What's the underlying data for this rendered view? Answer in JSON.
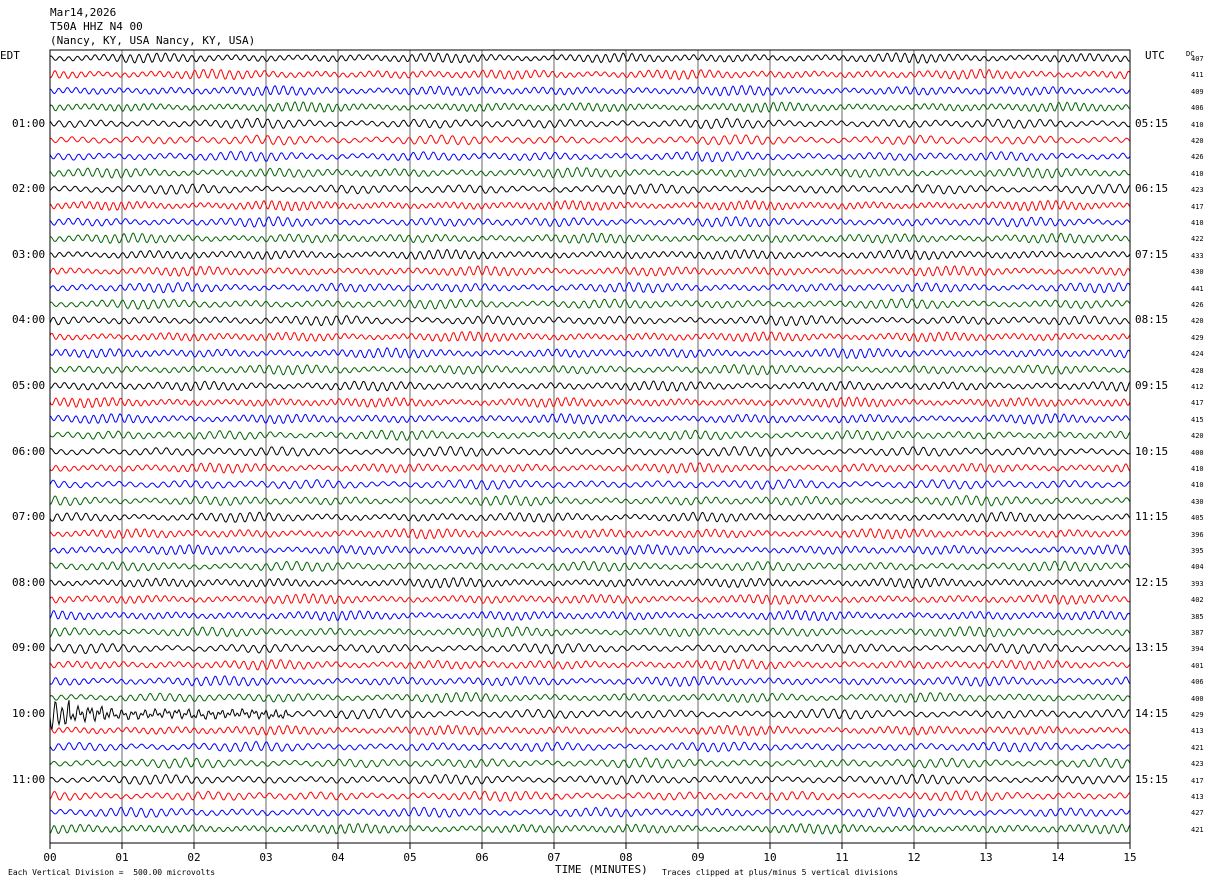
{
  "header": {
    "date": "Mar14,2026",
    "station": "T50A HHZ N4 00",
    "location": "(Nancy, KY, USA Nancy, KY, USA)"
  },
  "left_axis_label": "EDT",
  "right_axis_label": "UTC",
  "dc_label": "DC",
  "edt_hours": [
    "01:00",
    "02:00",
    "03:00",
    "04:00",
    "05:00",
    "06:00",
    "07:00",
    "08:00",
    "09:00",
    "10:00",
    "11:00"
  ],
  "utc_hours": [
    "05:15",
    "06:15",
    "07:15",
    "08:15",
    "09:15",
    "10:15",
    "11:15",
    "12:15",
    "13:15",
    "14:15",
    "15:15"
  ],
  "dc_offsets": [
    "407",
    "411",
    "409",
    "406",
    "410",
    "420",
    "426",
    "410",
    "423",
    "417",
    "410",
    "422",
    "433",
    "430",
    "441",
    "426",
    "420",
    "429",
    "424",
    "428",
    "412",
    "417",
    "415",
    "420",
    "400",
    "410",
    "410",
    "430",
    "405",
    "396",
    "395",
    "404",
    "393",
    "402",
    "385",
    "387",
    "394",
    "401",
    "406",
    "400",
    "429",
    "413",
    "421",
    "423",
    "417",
    "413",
    "427",
    "421"
  ],
  "x_ticks": [
    "00",
    "01",
    "02",
    "03",
    "04",
    "05",
    "06",
    "07",
    "08",
    "09",
    "10",
    "11",
    "12",
    "13",
    "14",
    "15"
  ],
  "x_axis_title": "TIME (MINUTES)",
  "footer": {
    "scale_note": "Each Vertical Division =  500.00 microvolts",
    "clip_note": "Traces clipped at plus/minus 5 vertical divisions"
  },
  "trace_colors": [
    "#000000",
    "#ff0000",
    "#0000ff",
    "#006400"
  ],
  "trace_count": 48
}
